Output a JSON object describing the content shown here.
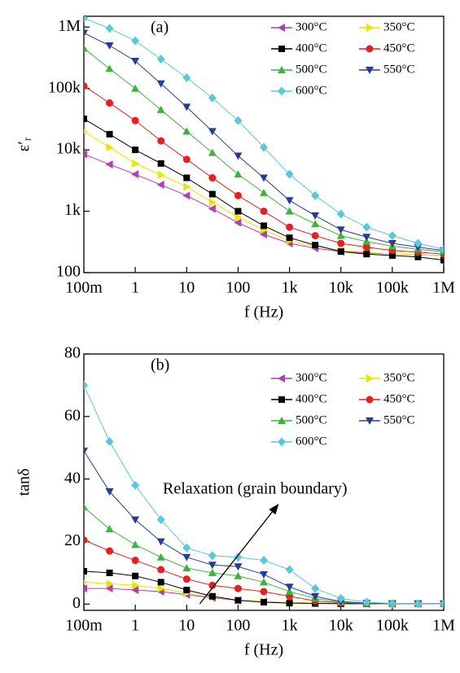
{
  "chart_data": [
    {
      "type": "line",
      "title": "(a)",
      "xlabel": "f (Hz)",
      "ylabel": "ε′ᵣ",
      "xscale": "log",
      "yscale": "log",
      "legend": "upper right",
      "x": [
        0.1,
        0.316,
        1,
        3.16,
        10,
        31.6,
        100,
        316,
        1000,
        3160,
        10000,
        31600,
        100000,
        316000,
        1000000
      ],
      "xlim": [
        0.1,
        1000000
      ],
      "xticks": [
        {
          "value": 0.1,
          "label": "100m"
        },
        1,
        10,
        100,
        {
          "value": 1000,
          "label": "1k"
        },
        {
          "value": 10000,
          "label": "10k"
        },
        {
          "value": 100000,
          "label": "100k"
        },
        {
          "value": 1000000,
          "label": "1M"
        }
      ],
      "ylim": [
        100,
        1500000
      ],
      "yticks": [
        100,
        {
          "value": 1000,
          "label": "1k"
        },
        {
          "value": 10000,
          "label": "10k"
        },
        {
          "value": 100000,
          "label": "100k"
        },
        {
          "value": 1000000,
          "label": "1M"
        }
      ],
      "series": [
        {
          "name": "300°C",
          "color": "#b43cb4",
          "marker": "left",
          "values": [
            8500,
            5800,
            4000,
            2700,
            1800,
            1100,
            650,
            420,
            300,
            250,
            220,
            210,
            200,
            195,
            190
          ]
        },
        {
          "name": "350°C",
          "color": "#e6e600",
          "marker": "right",
          "values": [
            20000,
            11000,
            6000,
            3900,
            2500,
            1400,
            800,
            500,
            330,
            270,
            230,
            215,
            200,
            195,
            190
          ]
        },
        {
          "name": "400°C",
          "color": "#000000",
          "marker": "square",
          "values": [
            32000,
            18000,
            10000,
            6000,
            3500,
            1900,
            1000,
            580,
            370,
            280,
            220,
            200,
            190,
            180,
            160
          ]
        },
        {
          "name": "450°C",
          "color": "#e62020",
          "marker": "circle",
          "values": [
            110000,
            58000,
            30000,
            14000,
            7000,
            3500,
            1800,
            1000,
            550,
            400,
            300,
            260,
            230,
            215,
            200
          ]
        },
        {
          "name": "500°C",
          "color": "#3cb43c",
          "marker": "up",
          "values": [
            450000,
            210000,
            100000,
            45000,
            20000,
            9000,
            4000,
            2000,
            1000,
            620,
            400,
            320,
            270,
            240,
            220
          ]
        },
        {
          "name": "550°C",
          "color": "#283c96",
          "marker": "down",
          "values": [
            800000,
            500000,
            280000,
            120000,
            50000,
            20000,
            8000,
            3500,
            1500,
            850,
            500,
            380,
            300,
            260,
            230
          ]
        },
        {
          "name": "600°C",
          "color": "#5ac8d8",
          "marker": "diamond",
          "values": [
            1400000,
            950000,
            600000,
            300000,
            150000,
            70000,
            30000,
            11000,
            4000,
            1800,
            900,
            550,
            400,
            300,
            240
          ]
        }
      ]
    },
    {
      "type": "line",
      "title": "(b)",
      "xlabel": "f (Hz)",
      "ylabel": "tanδ",
      "xscale": "log",
      "yscale": "linear",
      "legend": "upper right",
      "annotation": "Relaxation (grain boundary)",
      "x": [
        0.1,
        0.316,
        1,
        3.16,
        10,
        31.6,
        100,
        316,
        1000,
        3160,
        10000,
        31600,
        100000,
        316000,
        1000000
      ],
      "xlim": [
        0.1,
        1000000
      ],
      "xticks": [
        {
          "value": 0.1,
          "label": "100m"
        },
        1,
        10,
        100,
        {
          "value": 1000,
          "label": "1k"
        },
        {
          "value": 10000,
          "label": "10k"
        },
        {
          "value": 100000,
          "label": "100k"
        },
        {
          "value": 1000000,
          "label": "1M"
        }
      ],
      "ylim": [
        -2,
        80
      ],
      "yticks": [
        0,
        20,
        40,
        60,
        80
      ],
      "series": [
        {
          "name": "300°C",
          "color": "#b43cb4",
          "marker": "left",
          "values": [
            5,
            5,
            4.5,
            4,
            3,
            2,
            1.2,
            0.8,
            0.5,
            0.3,
            0.2,
            0.1,
            0.1,
            0.1,
            0.1
          ]
        },
        {
          "name": "350°C",
          "color": "#e6e600",
          "marker": "right",
          "values": [
            7,
            6.5,
            6,
            5,
            3.5,
            2.2,
            1.3,
            0.8,
            0.5,
            0.3,
            0.2,
            0.1,
            0.1,
            0.1,
            0.1
          ]
        },
        {
          "name": "400°C",
          "color": "#000000",
          "marker": "square",
          "values": [
            10.5,
            10,
            9,
            7,
            4.5,
            2.5,
            1.2,
            0.6,
            0.3,
            0.2,
            0.1,
            0.1,
            0.1,
            0.1,
            0.1
          ]
        },
        {
          "name": "450°C",
          "color": "#e62020",
          "marker": "circle",
          "values": [
            20.5,
            17,
            14,
            11,
            8,
            6,
            5,
            4,
            2.5,
            1,
            0.4,
            0.2,
            0.1,
            0.1,
            0.1
          ]
        },
        {
          "name": "500°C",
          "color": "#3cb43c",
          "marker": "up",
          "values": [
            31,
            24,
            19,
            15,
            11.5,
            10,
            9,
            7,
            4,
            1.8,
            0.6,
            0.2,
            0.1,
            0.1,
            0.1
          ]
        },
        {
          "name": "550°C",
          "color": "#283c96",
          "marker": "down",
          "values": [
            49,
            36,
            27,
            20,
            15,
            12.5,
            12,
            9.5,
            5.5,
            2.5,
            0.8,
            0.3,
            0.1,
            0.1,
            0.1
          ]
        },
        {
          "name": "600°C",
          "color": "#5ac8d8",
          "marker": "diamond",
          "values": [
            70,
            52,
            38,
            27,
            18,
            15.5,
            15,
            14,
            11,
            5,
            1.8,
            0.6,
            0.2,
            0.1,
            0.1
          ]
        }
      ]
    }
  ]
}
